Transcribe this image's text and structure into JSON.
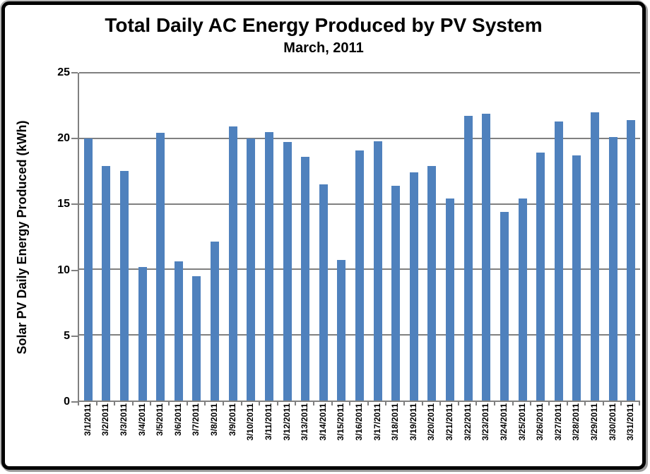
{
  "chart_data": {
    "type": "bar",
    "title": "Total Daily AC Energy Produced by PV System",
    "subtitle": "March, 2011",
    "ylabel": "Solar PV Daily Energy Produced (kWh)",
    "xlabel": "",
    "ylim": [
      0,
      25
    ],
    "yticks": [
      0,
      5,
      10,
      15,
      20,
      25
    ],
    "grid": true,
    "legend_position": "none",
    "bar_color": "#4F81BD",
    "gridline_color": "#808080",
    "axis_color": "#808080",
    "categories": [
      "3/1/2011",
      "3/2/2011",
      "3/3/2011",
      "3/4/2011",
      "3/5/2011",
      "3/6/2011",
      "3/7/2011",
      "3/8/2011",
      "3/9/2011",
      "3/10/2011",
      "3/11/2011",
      "3/12/2011",
      "3/13/2011",
      "3/14/2011",
      "3/15/2011",
      "3/16/2011",
      "3/17/2011",
      "3/18/2011",
      "3/19/2011",
      "3/20/2011",
      "3/21/2011",
      "3/22/2011",
      "3/23/2011",
      "3/24/2011",
      "3/25/2011",
      "3/26/2011",
      "3/27/2011",
      "3/28/2011",
      "3/29/2011",
      "3/30/2011",
      "3/31/2011"
    ],
    "values": [
      20.0,
      17.9,
      17.5,
      10.2,
      20.4,
      10.6,
      9.5,
      12.1,
      20.9,
      20.0,
      20.5,
      19.7,
      18.6,
      16.5,
      10.7,
      19.1,
      19.8,
      16.4,
      17.4,
      17.9,
      15.4,
      21.7,
      21.9,
      14.4,
      15.4,
      18.9,
      21.3,
      18.7,
      22.0,
      20.1,
      21.4
    ]
  }
}
